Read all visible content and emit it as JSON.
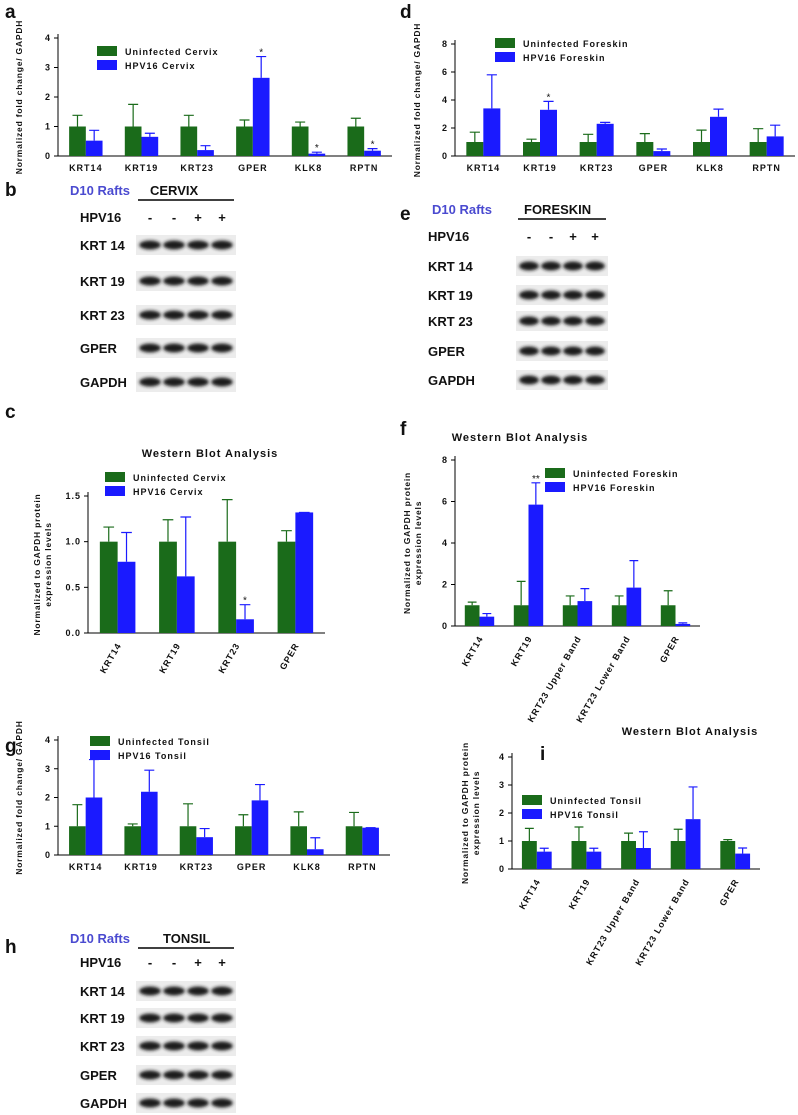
{
  "chart_data": [
    {
      "type": "bar",
      "panel": "a",
      "ylabel": [
        "Normalized fold change/ GAPDH"
      ],
      "categories": [
        "KRT14",
        "KRT19",
        "KRT23",
        "GPER",
        "KLK8",
        "RPTN"
      ],
      "ylim": [
        0,
        4
      ],
      "yticks": [
        0,
        1,
        2,
        3,
        4
      ],
      "series": [
        {
          "name": "Uninfected Cervix",
          "color": "#1a6b1a",
          "values": [
            1,
            1,
            1,
            1,
            1,
            1
          ],
          "errors": [
            0.38,
            0.75,
            0.38,
            0.22,
            0.15,
            0.28
          ]
        },
        {
          "name": "HPV16 Cervix",
          "color": "#1a1aff",
          "values": [
            0.52,
            0.65,
            0.2,
            2.65,
            0.08,
            0.18
          ],
          "errors": [
            0.35,
            0.12,
            0.15,
            0.72,
            0.05,
            0.07
          ],
          "significance": [
            null,
            null,
            null,
            "*",
            "*",
            "*"
          ]
        }
      ]
    },
    {
      "type": "bar",
      "panel": "d",
      "ylabel": [
        "Normalized fold change/ GAPDH"
      ],
      "categories": [
        "KRT14",
        "KRT19",
        "KRT23",
        "GPER",
        "KLK8",
        "RPTN"
      ],
      "ylim": [
        0,
        8
      ],
      "yticks": [
        0,
        2,
        4,
        6,
        8
      ],
      "series": [
        {
          "name": "Uninfected Foreskin",
          "color": "#1a6b1a",
          "values": [
            1,
            1,
            1,
            1,
            1,
            1
          ],
          "errors": [
            0.7,
            0.2,
            0.55,
            0.6,
            0.85,
            0.95
          ]
        },
        {
          "name": "HPV16 Foreskin",
          "color": "#1a1aff",
          "values": [
            3.4,
            3.3,
            2.3,
            0.35,
            2.8,
            1.4
          ],
          "errors": [
            2.4,
            0.6,
            0.1,
            0.15,
            0.55,
            0.8
          ],
          "significance": [
            null,
            "*",
            null,
            null,
            null,
            null
          ]
        }
      ]
    },
    {
      "type": "bar",
      "panel": "c",
      "title": "Western Blot Analysis",
      "ylabel": [
        "Normalized to GAPDH protein",
        "expression levels"
      ],
      "categories": [
        "KRT14",
        "KRT19",
        "KRT23",
        "GPER"
      ],
      "ylim": [
        0,
        1.5
      ],
      "yticks": [
        {
          "value": 0,
          "label": "0.0"
        },
        {
          "value": 0.5,
          "label": "0.5"
        },
        {
          "value": 1,
          "label": "1.0"
        },
        {
          "value": 1.5,
          "label": "1.5"
        }
      ],
      "series": [
        {
          "name": "Uninfected Cervix",
          "color": "#1a6b1a",
          "values": [
            1,
            1,
            1,
            1
          ],
          "errors": [
            0.16,
            0.24,
            0.46,
            0.12
          ]
        },
        {
          "name": "HPV16 Cervix",
          "color": "#1a1aff",
          "values": [
            0.78,
            0.62,
            0.15,
            1.32
          ],
          "errors": [
            0.32,
            0.65,
            0.16,
            0
          ],
          "significance": [
            null,
            null,
            "*",
            null
          ]
        }
      ]
    },
    {
      "type": "bar",
      "panel": "f",
      "title": "Western Blot Analysis",
      "ylabel": [
        "Normalized to GAPDH protein",
        "expression levels"
      ],
      "categories": [
        "KRT14",
        "KRT19",
        "KRT23 Upper Band",
        "KRT23 Lower Band",
        "GPER"
      ],
      "ylim": [
        0,
        8
      ],
      "yticks": [
        0,
        2,
        4,
        6,
        8
      ],
      "series": [
        {
          "name": "Uninfected Foreskin",
          "color": "#1a6b1a",
          "values": [
            1,
            1,
            1,
            1,
            1
          ],
          "errors": [
            0.15,
            1.15,
            0.45,
            0.45,
            0.7
          ]
        },
        {
          "name": "HPV16 Foreskin",
          "color": "#1a1aff",
          "values": [
            0.45,
            5.85,
            1.2,
            1.85,
            0.1
          ],
          "errors": [
            0.15,
            1.05,
            0.6,
            1.3,
            0.05
          ],
          "significance": [
            null,
            "**",
            null,
            null,
            null
          ]
        }
      ]
    },
    {
      "type": "bar",
      "panel": "g",
      "ylabel": [
        "Normalized fold change/ GAPDH"
      ],
      "categories": [
        "KRT14",
        "KRT19",
        "KRT23",
        "GPER",
        "KLK8",
        "RPTN"
      ],
      "ylim": [
        0,
        4
      ],
      "yticks": [
        0,
        1,
        2,
        3,
        4
      ],
      "series": [
        {
          "name": "Uninfected Tonsil",
          "color": "#1a6b1a",
          "values": [
            1,
            1,
            1,
            1,
            1,
            1
          ],
          "errors": [
            0.75,
            0.08,
            0.78,
            0.4,
            0.5,
            0.48
          ]
        },
        {
          "name": "HPV16 Tonsil",
          "color": "#1a1aff",
          "values": [
            2.0,
            2.2,
            0.62,
            1.9,
            0.2,
            0.95
          ],
          "errors": [
            1.32,
            0.75,
            0.3,
            0.55,
            0.4,
            0
          ]
        }
      ]
    },
    {
      "type": "bar",
      "panel": "i",
      "title": "Western Blot Analysis",
      "ylabel": [
        "Normalized to GAPDH protein",
        "expression levels"
      ],
      "categories": [
        "KRT14",
        "KRT19",
        "KRT23 Upper Band",
        "KRT23 Lower Band",
        "GPER"
      ],
      "ylim": [
        0,
        4
      ],
      "yticks": [
        0,
        1,
        2,
        3,
        4
      ],
      "series": [
        {
          "name": "Uninfected Tonsil",
          "color": "#1a6b1a",
          "values": [
            1,
            1,
            1,
            1,
            1
          ],
          "errors": [
            0.45,
            0.5,
            0.28,
            0.42,
            0.05
          ]
        },
        {
          "name": "HPV16 Tonsil",
          "color": "#1a1aff",
          "values": [
            0.62,
            0.62,
            0.75,
            1.78,
            0.55
          ],
          "errors": [
            0.12,
            0.12,
            0.58,
            1.15,
            0.2
          ]
        }
      ]
    }
  ],
  "blots": [
    {
      "panel": "b",
      "label": "D10 Rafts",
      "tissue": "CERVIX",
      "factor": "HPV16",
      "lanes": [
        "-",
        "-",
        "+",
        "+"
      ],
      "rows": [
        "KRT 14",
        "KRT 19",
        "KRT 23",
        "GPER",
        "GAPDH"
      ]
    },
    {
      "panel": "e",
      "label": "D10 Rafts",
      "tissue": "FORESKIN",
      "factor": "HPV16",
      "lanes": [
        "-",
        "-",
        "+",
        "+"
      ],
      "rows": [
        "KRT 14",
        "KRT 19",
        "KRT 23",
        "GPER",
        "GAPDH"
      ]
    },
    {
      "panel": "h",
      "label": "D10 Rafts",
      "tissue": "TONSIL",
      "factor": "HPV16",
      "lanes": [
        "-",
        "-",
        "+",
        "+"
      ],
      "rows": [
        "KRT 14",
        "KRT 19",
        "KRT 23",
        "GPER",
        "GAPDH"
      ]
    }
  ]
}
